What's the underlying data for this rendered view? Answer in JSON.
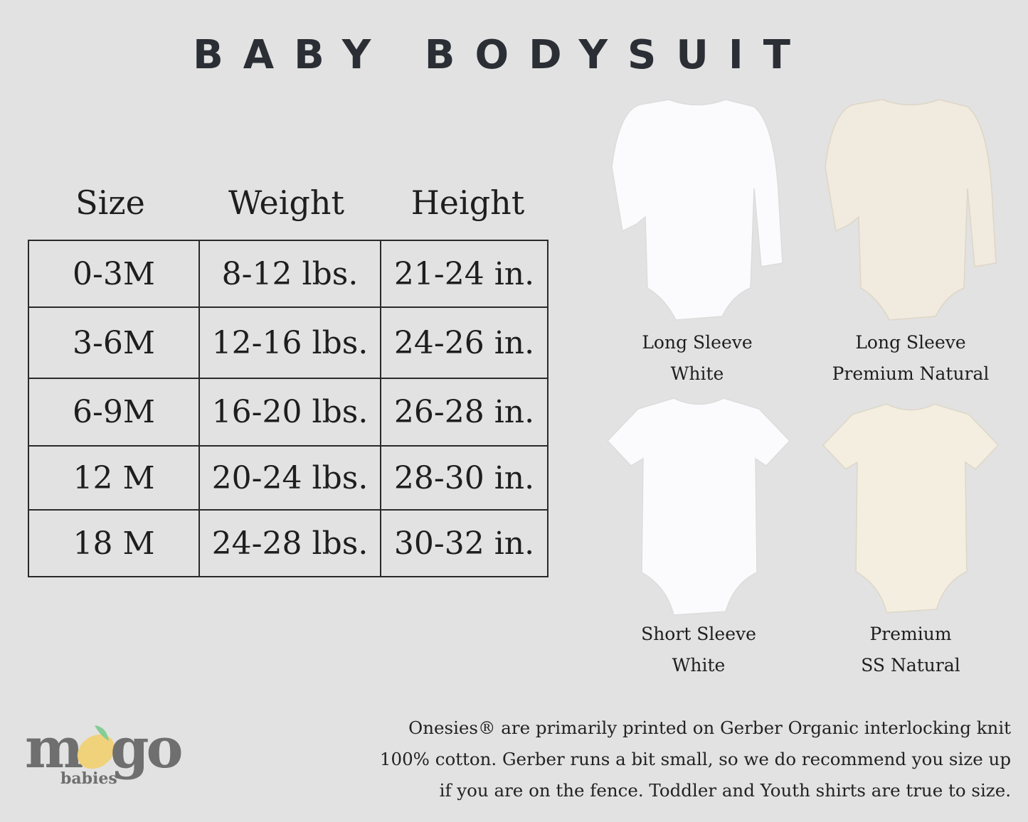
{
  "title": "BABY BODYSUIT",
  "table": {
    "headers": [
      "Size",
      "Weight",
      "Height"
    ],
    "rows": [
      [
        "0-3M",
        "8-12 lbs.",
        "21-24 in."
      ],
      [
        "3-6M",
        "12-16 lbs.",
        "24-26 in."
      ],
      [
        "6-9M",
        "16-20 lbs.",
        "26-28 in."
      ],
      [
        "12 M",
        "20-24 lbs.",
        "28-30 in."
      ],
      [
        "18 M",
        "24-28 lbs.",
        "30-32 in."
      ]
    ]
  },
  "products": [
    {
      "line1": "Long Sleeve",
      "line2": "White",
      "color": "#fbfbfd",
      "sleeve": "long"
    },
    {
      "line1": "Long Sleeve",
      "line2": "Premium Natural",
      "color": "#f1eade",
      "sleeve": "long"
    },
    {
      "line1": "Short Sleeve",
      "line2": "White",
      "color": "#fbfbfd",
      "sleeve": "short"
    },
    {
      "line1": "Premium",
      "line2": "SS Natural",
      "color": "#f3eedf",
      "sleeve": "short"
    }
  ],
  "note": {
    "line1": "Onesies® are primarily printed on Gerber Organic interlocking knit",
    "line2": "100% cotton. Gerber runs a bit small, so we do recommend you size up",
    "line3": "if you are on the fence. Toddler and Youth shirts are true to size."
  },
  "logo": {
    "word": "mongo",
    "sub": "babies",
    "mango_color": "#f0d27a",
    "leaf_color": "#86cc95",
    "text_color": "#6f6f6f"
  }
}
